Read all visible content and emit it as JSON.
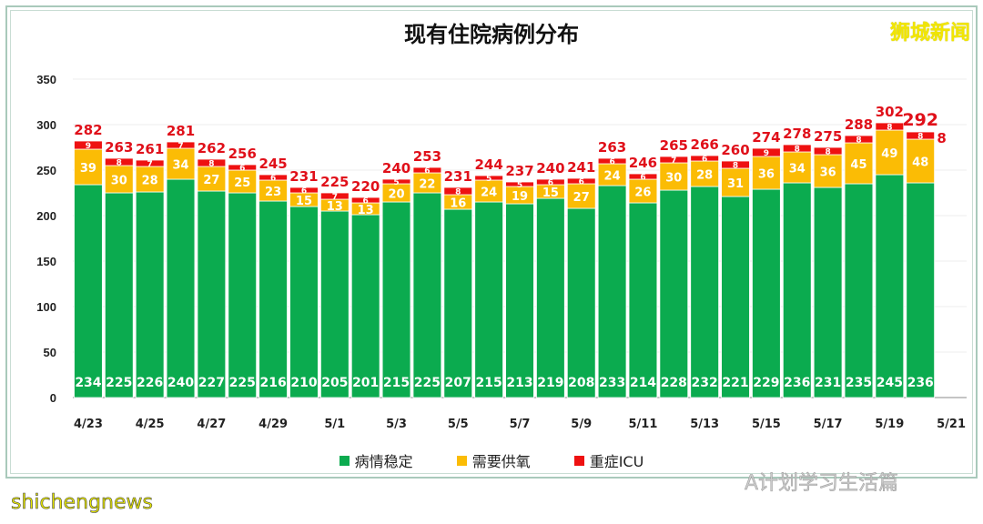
{
  "header": {
    "title": "现有住院病例分布",
    "logo": "狮城新闻"
  },
  "footer": {
    "source_watermark": "shichengnews",
    "wechat_watermark": "A计划学习生活篇"
  },
  "chart_data": {
    "type": "bar",
    "stacked": true,
    "title": "现有住院病例分布",
    "xlabel": "",
    "ylabel": "",
    "ylim": [
      0,
      350
    ],
    "yticks": [
      0,
      50,
      100,
      150,
      200,
      250,
      300,
      350
    ],
    "grid": true,
    "legend_position": "bottom",
    "categories": [
      "4/23",
      "4/24",
      "4/25",
      "4/26",
      "4/27",
      "4/28",
      "4/29",
      "4/30",
      "5/1",
      "5/2",
      "5/3",
      "5/4",
      "5/5",
      "5/6",
      "5/7",
      "5/8",
      "5/9",
      "5/10",
      "5/11",
      "5/12",
      "5/13",
      "5/14",
      "5/15",
      "5/16",
      "5/17",
      "5/18",
      "5/19",
      "5/20"
    ],
    "xtick_labels": [
      "4/23",
      "4/25",
      "4/27",
      "4/29",
      "5/1",
      "5/3",
      "5/5",
      "5/7",
      "5/9",
      "5/11",
      "5/13",
      "5/15",
      "5/17",
      "5/19",
      "5/21"
    ],
    "series": [
      {
        "name": "病情稳定",
        "color": "#0bab4f",
        "values": [
          234,
          225,
          226,
          240,
          227,
          225,
          216,
          210,
          205,
          201,
          215,
          225,
          207,
          215,
          213,
          219,
          208,
          233,
          214,
          228,
          232,
          221,
          229,
          236,
          231,
          235,
          245,
          236
        ]
      },
      {
        "name": "需要供氧",
        "color": "#fbbc05",
        "values": [
          39,
          30,
          28,
          34,
          27,
          25,
          23,
          15,
          13,
          13,
          20,
          22,
          16,
          24,
          19,
          15,
          27,
          24,
          26,
          30,
          28,
          31,
          36,
          34,
          36,
          45,
          49,
          48
        ]
      },
      {
        "name": "重症ICU",
        "color": "#ee1111",
        "values": [
          9,
          8,
          7,
          7,
          8,
          6,
          6,
          6,
          7,
          6,
          5,
          6,
          8,
          5,
          5,
          6,
          6,
          6,
          6,
          7,
          6,
          8,
          9,
          8,
          8,
          8,
          8,
          8
        ]
      }
    ],
    "totals": [
      282,
      263,
      261,
      281,
      262,
      256,
      245,
      231,
      225,
      220,
      240,
      253,
      231,
      244,
      237,
      240,
      241,
      263,
      246,
      265,
      266,
      260,
      274,
      278,
      275,
      288,
      302,
      292
    ]
  }
}
